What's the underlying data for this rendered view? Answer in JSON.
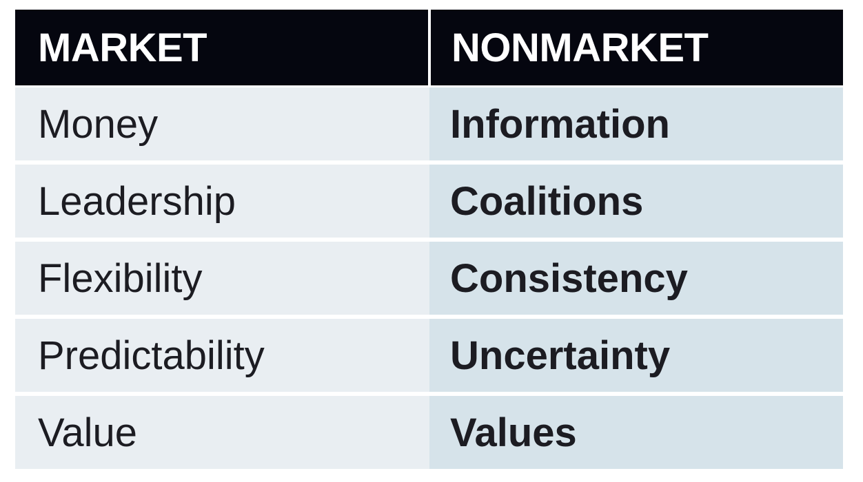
{
  "table": {
    "headers": [
      "MARKET",
      "NONMARKET"
    ],
    "rows": [
      [
        "Money",
        "Information"
      ],
      [
        "Leadership",
        "Coalitions"
      ],
      [
        "Flexibility",
        "Consistency"
      ],
      [
        "Predictability",
        "Uncertainty"
      ],
      [
        "Value",
        "Values"
      ]
    ]
  },
  "colors": {
    "header_bg": "#05060f",
    "left_col_bg": "#e9eef2",
    "right_col_bg": "#d6e3ea",
    "text": "#1c1c22"
  }
}
